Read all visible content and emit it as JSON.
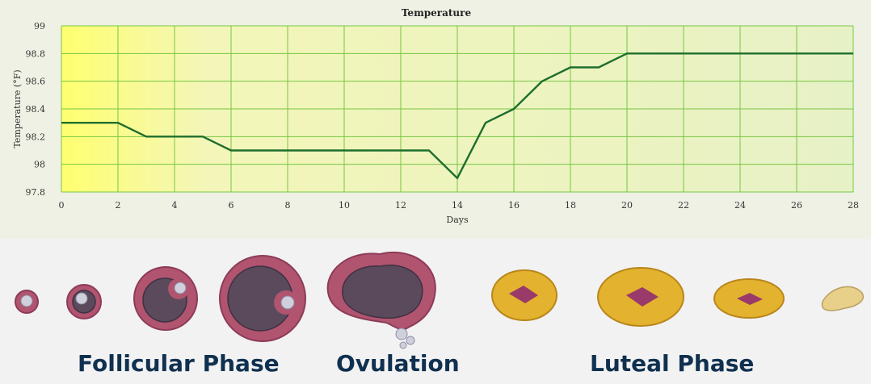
{
  "chart_data": {
    "type": "line",
    "title": "Temperature",
    "xlabel": "Days",
    "ylabel": "Temperature (°F)",
    "xlim": [
      0,
      28
    ],
    "ylim": [
      97.8,
      99
    ],
    "x_ticks": [
      "0",
      "2",
      "4",
      "6",
      "8",
      "10",
      "12",
      "14",
      "16",
      "18",
      "20",
      "22",
      "24",
      "26",
      "28"
    ],
    "y_ticks": [
      "97.8",
      "98",
      "98.2",
      "98.4",
      "98.6",
      "98.8",
      "99"
    ],
    "grid": true,
    "series": [
      {
        "color": "#1e6e2e",
        "x": [
          0,
          2,
          3,
          5,
          6,
          13,
          14,
          15,
          16,
          17,
          18,
          19,
          20,
          28
        ],
        "y": [
          98.3,
          98.3,
          98.2,
          98.2,
          98.1,
          98.1,
          97.9,
          98.3,
          98.4,
          98.6,
          98.7,
          98.7,
          98.8,
          98.8
        ]
      }
    ],
    "background_gradient": [
      "#ffff70",
      "#f3f6b8",
      "#e7f1c6"
    ],
    "grid_color": "#76c642"
  },
  "illustration": {
    "phase_labels": [
      {
        "key": "follicular",
        "text": "Follicular Phase"
      },
      {
        "key": "ovulation",
        "text": "Ovulation"
      },
      {
        "key": "luteal",
        "text": "Luteal Phase"
      }
    ],
    "colors": {
      "follicle_ring": "#b0546f",
      "follicle_inner": "#5a4a5c",
      "egg": "#cfd0dc",
      "corpus_luteum": "#e3b22e",
      "corpus_core": "#9a3a6a",
      "label": "#10304f"
    }
  }
}
